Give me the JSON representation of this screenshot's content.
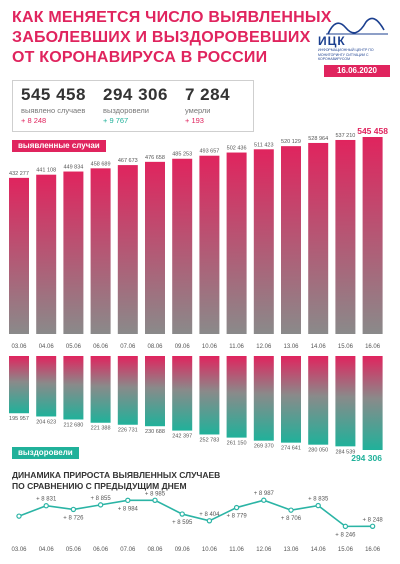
{
  "header": {
    "title_lines": [
      "КАК МЕНЯЕТСЯ ЧИСЛО ВЫЯВЛЕННЫХ",
      "ЗАБОЛЕВШИХ И ВЫЗДОРОВЕВШИХ",
      "ОТ КОРОНАВИРУСА В РОССИИ"
    ],
    "logo_abbr": "ИЦК",
    "logo_subtitle": "ИНФОРМАЦИОННЫЙ ЦЕНТР ПО МОНИТОРИНГУ СИТУАЦИИ С КОРОНАВИРУСОМ",
    "date": "16.06.2020"
  },
  "stats": [
    {
      "value": "545 458",
      "label": "выявлено случаев",
      "delta": "+ 8 248",
      "color": "#e0245e"
    },
    {
      "value": "294 306",
      "label": "выздоровели",
      "delta": "+ 9 767",
      "color": "#20b19a"
    },
    {
      "value": "7 284",
      "label": "умерли",
      "delta": "+ 193",
      "color": "#e0245e"
    }
  ],
  "labels": {
    "cases_pill": "выявленные случаи",
    "recovered_pill": "выздоровели",
    "dynamics_title": [
      "ДИНАМИКА ПРИРОСТА ВЫЯВЛЕННЫХ СЛУЧАЕВ",
      "ПО СРАВНЕНИЮ С ПРЕДЫДУЩИМ ДНЕМ"
    ]
  },
  "colors": {
    "pink": "#e0245e",
    "teal": "#20b19a",
    "gray": "#8a8a8a",
    "line": "#2bb4a5"
  },
  "chart_data": [
    {
      "type": "bar",
      "name": "выявленные случаи",
      "categories": [
        "03.06",
        "04.06",
        "05.06",
        "06.06",
        "07.06",
        "08.06",
        "09.06",
        "10.06",
        "11.06",
        "12.06",
        "13.06",
        "14.06",
        "15.06",
        "16.06"
      ],
      "values": [
        432277,
        441108,
        449834,
        458689,
        467673,
        476658,
        485253,
        493657,
        502436,
        511423,
        520129,
        528964,
        537210,
        545458
      ],
      "value_labels": [
        "432 277",
        "441 108",
        "449 834",
        "458 689",
        "467 673",
        "476 658",
        "485 253",
        "493 657",
        "502 436",
        "511 423",
        "520 129",
        "528 964",
        "537 210",
        "545 458"
      ]
    },
    {
      "type": "bar",
      "name": "выздоровели",
      "categories": [
        "03.06",
        "04.06",
        "05.06",
        "06.06",
        "07.06",
        "08.06",
        "09.06",
        "10.06",
        "11.06",
        "12.06",
        "13.06",
        "14.06",
        "15.06",
        "16.06"
      ],
      "values": [
        195957,
        204623,
        212680,
        221388,
        226731,
        230688,
        242397,
        252783,
        261150,
        269370,
        274641,
        280050,
        284539,
        294306
      ],
      "value_labels": [
        "195 957",
        "204 623",
        "212 680",
        "221 388",
        "226 731",
        "230 688",
        "242 397",
        "252 783",
        "261 150",
        "269 370",
        "274 641",
        "280 050",
        "284 539",
        "294 306"
      ]
    },
    {
      "type": "line",
      "name": "прирост выявленных случаев",
      "categories": [
        "03.06",
        "04.06",
        "05.06",
        "06.06",
        "07.06",
        "08.06",
        "09.06",
        "10.06",
        "11.06",
        "12.06",
        "13.06",
        "14.06",
        "15.06",
        "16.06"
      ],
      "values": [
        8536,
        8831,
        8726,
        8855,
        8984,
        8985,
        8595,
        8404,
        8779,
        8987,
        8706,
        8835,
        8246,
        8248
      ],
      "value_labels": [
        "",
        "+ 8 831",
        "+ 8 726",
        "+ 8 855",
        "+ 8 984",
        "+ 8 985",
        "+ 8 595",
        "+ 8 404",
        "+ 8 779",
        "+ 8 987",
        "+ 8 706",
        "+ 8 835",
        "+ 8 246",
        "+ 8 248"
      ]
    }
  ]
}
